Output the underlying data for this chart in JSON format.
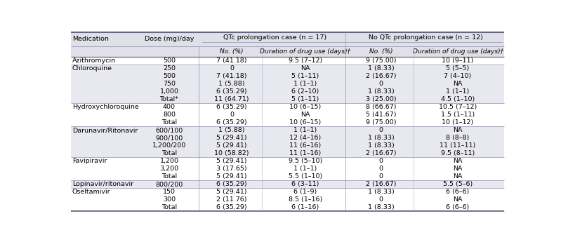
{
  "col_headers_row1": [
    "Medication",
    "Dose (mg)/day",
    "QTc prolongation case (n = 17)",
    "",
    "No QTc prolongation case (n = 12)",
    ""
  ],
  "col_headers_row2": [
    "",
    "",
    "No. (%)",
    "Duration of drug use (days)†",
    "No. (%)",
    "Duration of drug use (days)†"
  ],
  "rows": [
    [
      "Azithromycin",
      "500",
      "7 (41.18)",
      "9.5 (7–12)",
      "9 (75.00)",
      "10 (9–11)"
    ],
    [
      "Chloroquine",
      "250",
      "0",
      "NA",
      "1 (8.33)",
      "5 (5–5)"
    ],
    [
      "",
      "500",
      "7 (41.18)",
      "5 (1–11)",
      "2 (16.67)",
      "7 (4–10)"
    ],
    [
      "",
      "750",
      "1 (5.88)",
      "1 (1–1)",
      "0",
      "NA"
    ],
    [
      "",
      "1,000",
      "6 (35.29)",
      "6 (2–10)",
      "1 (8.33)",
      "1 (1–1)"
    ],
    [
      "",
      "Total*",
      "11 (64.71)",
      "5 (1–11)",
      "3 (25.00)",
      "4.5 (1–10)"
    ],
    [
      "Hydroxychloroquine",
      "400",
      "6 (35.29)",
      "10 (6–15)",
      "8 (66.67)",
      "10.5 (7–12)"
    ],
    [
      "",
      "800",
      "0",
      "NA",
      "5 (41.67)",
      "1.5 (1–11)"
    ],
    [
      "",
      "Total",
      "6 (35.29)",
      "10 (6–15)",
      "9 (75.00)",
      "10 (1–12)"
    ],
    [
      "Darunavir/Ritonavir",
      "600/100",
      "1 (5.88)",
      "1 (1–1)",
      "0",
      "NA"
    ],
    [
      "",
      "900/100",
      "5 (29.41)",
      "12 (4–16)",
      "1 (8.33)",
      "8 (8–8)"
    ],
    [
      "",
      "1,200/200",
      "5 (29.41)",
      "11 (6–16)",
      "1 (8.33)",
      "11 (11–11)"
    ],
    [
      "",
      "Total",
      "10 (58.82)",
      "11 (1–16)",
      "2 (16.67)",
      "9.5 (8–11)"
    ],
    [
      "Favipiravir",
      "1,200",
      "5 (29.41)",
      "9.5 (5–10)",
      "0",
      "NA"
    ],
    [
      "",
      "3,200",
      "3 (17.65)",
      "1 (1–1)",
      "0",
      "NA"
    ],
    [
      "",
      "Total",
      "5 (29.41)",
      "5.5 (1–10)",
      "0",
      "NA"
    ],
    [
      "Lopinavir/ritonavir",
      "800/200",
      "6 (35.29)",
      "6 (3–11)",
      "2 (16.67)",
      "5.5 (5–6)"
    ],
    [
      "Oseltamivir",
      "150",
      "5 (29.41)",
      "6 (1–9)",
      "1 (8.33)",
      "6 (6–6)"
    ],
    [
      "",
      "300",
      "2 (11.76)",
      "8.5 (1–16)",
      "0",
      "NA"
    ],
    [
      "",
      "Total",
      "6 (35.29)",
      "6 (1–16)",
      "1 (8.33)",
      "6 (6–6)"
    ]
  ],
  "group_ranges": [
    [
      0,
      0
    ],
    [
      1,
      5
    ],
    [
      6,
      8
    ],
    [
      9,
      12
    ],
    [
      13,
      15
    ],
    [
      16,
      16
    ],
    [
      17,
      19
    ]
  ],
  "shade_pattern": [
    false,
    true,
    false,
    true,
    false,
    true,
    false
  ],
  "shade_color": "#e8e8f0",
  "bg_color": "#ffffff",
  "header_bg": "#e0e0e8",
  "text_color": "#000000",
  "font_size": 6.8,
  "header_font_size": 6.8
}
